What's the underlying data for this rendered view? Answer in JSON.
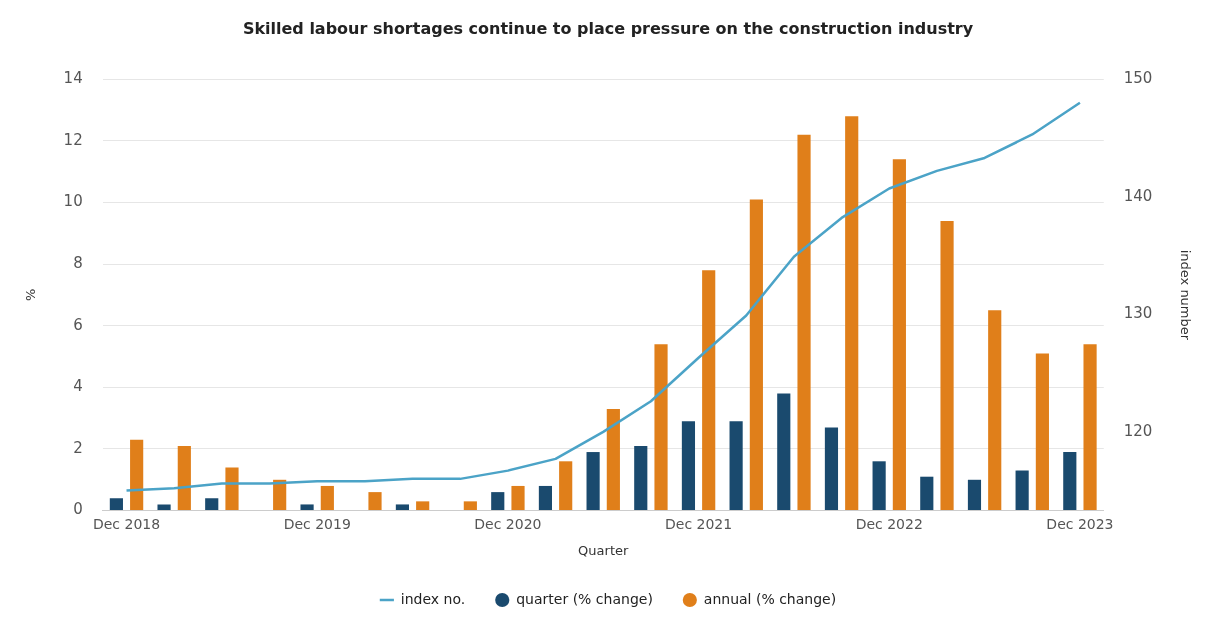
{
  "chart_data": {
    "type": "bar",
    "title": "Skilled labour shortages continue to place pressure on the construction industry",
    "xlabel": "Quarter",
    "ylabel": "%",
    "y2label": "index number",
    "categories": [
      "Dec 2018",
      null,
      null,
      null,
      "Dec 2019",
      null,
      null,
      null,
      "Dec 2020",
      null,
      null,
      null,
      "Dec 2021",
      null,
      null,
      null,
      "Dec 2022",
      null,
      null,
      null,
      "Dec 2023"
    ],
    "series": [
      {
        "name": "quarter (% change)",
        "color": "#1a4a6e",
        "values": [
          0.4,
          0.2,
          0.4,
          0,
          0.2,
          0,
          0.2,
          0,
          0.6,
          0.8,
          1.9,
          2.1,
          2.9,
          2.9,
          3.8,
          2.7,
          1.6,
          1.1,
          1.0,
          1.3,
          1.9
        ]
      },
      {
        "name": "annual (% change)",
        "color": "#e07f1a",
        "values": [
          2.3,
          2.1,
          1.4,
          1.0,
          0.8,
          0.6,
          0.3,
          0.3,
          0.8,
          1.6,
          3.3,
          5.4,
          7.8,
          10.1,
          12.2,
          12.8,
          11.4,
          9.4,
          6.5,
          5.1,
          5.4
        ]
      },
      {
        "name": "index no.",
        "type": "line",
        "axis": "y2",
        "color": "#4ba3c7",
        "values": [
          115.0,
          115.2,
          115.6,
          115.6,
          115.8,
          115.8,
          116.0,
          116.0,
          116.7,
          117.7,
          120.0,
          122.6,
          126.3,
          129.9,
          134.9,
          138.2,
          140.7,
          142.2,
          143.3,
          145.3,
          148.0
        ]
      }
    ],
    "ylim": [
      0,
      14
    ],
    "yticks": [
      0,
      2,
      4,
      6,
      8,
      10,
      12,
      14
    ],
    "y2lim": [
      113.3,
      150
    ],
    "y2ticks": [
      120,
      130,
      140,
      150
    ],
    "grid": "y",
    "legend": "bottom"
  }
}
